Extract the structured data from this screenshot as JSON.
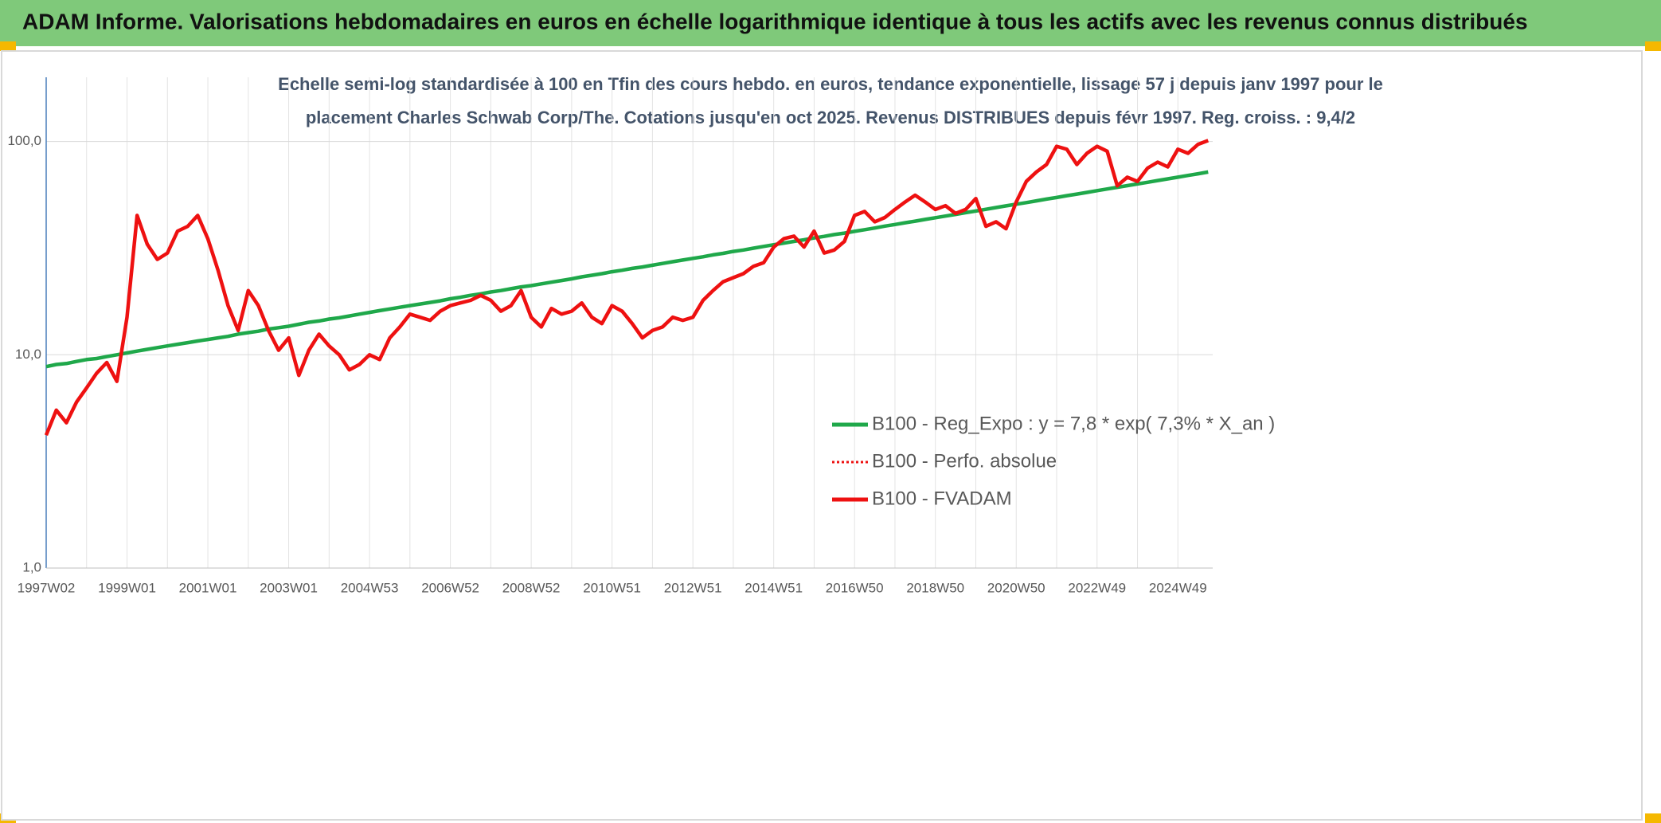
{
  "header": {
    "title": "ADAM Informe. Valorisations hebdomadaires en euros en échelle logarithmique identique à tous les actifs avec les revenus connus distribués"
  },
  "chart_data": {
    "type": "line",
    "subtitle": [
      "Echelle semi-log standardisée à 100 en Tfin des cours hebdo. en euros, tendance exponentielle, lissage 57 j depuis janv 1997 pour le",
      "placement Charles Schwab Corp/The. Cotations jusqu'en oct 2025. Revenus DISTRIBUES depuis févr 1997. Reg. croiss. : 9,4/2"
    ],
    "categories": [
      "1997W02",
      null,
      null,
      null,
      null,
      null,
      null,
      null,
      "1999W01",
      null,
      null,
      null,
      null,
      null,
      null,
      null,
      "2001W01",
      null,
      null,
      null,
      null,
      null,
      null,
      null,
      "2003W01",
      null,
      null,
      null,
      null,
      null,
      null,
      null,
      "2004W53",
      null,
      null,
      null,
      null,
      null,
      null,
      null,
      "2006W52",
      null,
      null,
      null,
      null,
      null,
      null,
      null,
      "2008W52",
      null,
      null,
      null,
      null,
      null,
      null,
      null,
      "2010W51",
      null,
      null,
      null,
      null,
      null,
      null,
      null,
      "2012W51",
      null,
      null,
      null,
      null,
      null,
      null,
      null,
      "2014W51",
      null,
      null,
      null,
      null,
      null,
      null,
      null,
      "2016W50",
      null,
      null,
      null,
      null,
      null,
      null,
      null,
      "2018W50",
      null,
      null,
      null,
      null,
      null,
      null,
      null,
      "2020W50",
      null,
      null,
      null,
      null,
      null,
      null,
      null,
      "2022W49",
      null,
      null,
      null,
      null,
      null,
      null,
      null,
      "2024W49",
      null,
      null,
      null
    ],
    "log_scale": true,
    "grid": true,
    "ylim": [
      1,
      200
    ],
    "yticks": [
      {
        "value": 1,
        "label": "1,0"
      },
      {
        "value": 10,
        "label": "10,0"
      },
      {
        "value": 100,
        "label": "100,0"
      }
    ],
    "series": [
      {
        "name": "B100 - Reg_Expo : y = 7,8 * exp( 7,3% *  X_an )",
        "color": "#1fa84a",
        "style": "solid",
        "values": [
          8.8,
          9.0,
          9.1,
          9.3,
          9.5,
          9.6,
          9.8,
          10.0,
          10.2,
          10.4,
          10.6,
          10.8,
          11.0,
          11.2,
          11.4,
          11.6,
          11.8,
          12.0,
          12.2,
          12.5,
          12.7,
          12.9,
          13.2,
          13.4,
          13.6,
          13.9,
          14.2,
          14.4,
          14.7,
          14.9,
          15.2,
          15.5,
          15.8,
          16.1,
          16.4,
          16.7,
          17.0,
          17.3,
          17.6,
          17.9,
          18.3,
          18.6,
          19.0,
          19.3,
          19.7,
          20.0,
          20.4,
          20.8,
          21.1,
          21.5,
          21.9,
          22.3,
          22.7,
          23.2,
          23.6,
          24.0,
          24.5,
          24.9,
          25.4,
          25.8,
          26.3,
          26.8,
          27.3,
          27.8,
          28.3,
          28.8,
          29.4,
          29.9,
          30.5,
          31.0,
          31.6,
          32.2,
          32.8,
          33.4,
          34.0,
          34.6,
          35.3,
          35.9,
          36.6,
          37.2,
          37.9,
          38.6,
          39.3,
          40.1,
          40.8,
          41.6,
          42.3,
          43.1,
          43.9,
          44.7,
          45.5,
          46.4,
          47.2,
          48.1,
          49.0,
          49.9,
          50.8,
          51.7,
          52.7,
          53.7,
          54.6,
          55.7,
          56.7,
          57.7,
          58.8,
          59.9,
          61.0,
          62.1,
          63.2,
          64.4,
          65.6,
          66.8,
          68.0,
          69.3,
          70.6,
          71.9
        ]
      },
      {
        "name": "B100 - Perfo. absolue",
        "color": "#ee1111",
        "style": "dotted",
        "values": [
          4.2,
          5.5,
          4.8,
          6.0,
          7.0,
          8.2,
          9.2,
          7.5,
          15,
          45,
          33,
          28,
          30,
          38,
          40,
          45,
          35,
          25,
          17,
          13,
          20,
          17,
          13,
          10.5,
          12,
          8,
          10.5,
          12.5,
          11,
          10,
          8.5,
          9,
          10,
          9.5,
          12,
          13.5,
          15.5,
          15,
          14.5,
          16,
          17,
          17.5,
          18,
          19,
          18,
          16,
          17,
          20,
          15,
          13.5,
          16.5,
          15.5,
          16,
          17.5,
          15,
          14,
          17,
          16,
          14,
          12,
          13,
          13.5,
          15,
          14.5,
          15,
          18,
          20,
          22,
          23,
          24,
          26,
          27,
          32,
          35,
          36,
          32,
          38,
          30,
          31,
          34,
          45,
          47,
          42,
          44,
          48,
          52,
          56,
          52,
          48,
          50,
          46,
          48,
          54,
          40,
          42,
          39,
          52,
          65,
          72,
          78,
          95,
          92,
          78,
          88,
          95,
          90,
          62,
          68,
          65,
          75,
          80,
          76,
          92,
          88,
          97,
          101
        ]
      },
      {
        "name": "B100 - FVADAM",
        "color": "#ee1111",
        "style": "solid",
        "values": [
          4.2,
          5.5,
          4.8,
          6.0,
          7.0,
          8.2,
          9.2,
          7.5,
          15,
          45,
          33,
          28,
          30,
          38,
          40,
          45,
          35,
          25,
          17,
          13,
          20,
          17,
          13,
          10.5,
          12,
          8,
          10.5,
          12.5,
          11,
          10,
          8.5,
          9,
          10,
          9.5,
          12,
          13.5,
          15.5,
          15,
          14.5,
          16,
          17,
          17.5,
          18,
          19,
          18,
          16,
          17,
          20,
          15,
          13.5,
          16.5,
          15.5,
          16,
          17.5,
          15,
          14,
          17,
          16,
          14,
          12,
          13,
          13.5,
          15,
          14.5,
          15,
          18,
          20,
          22,
          23,
          24,
          26,
          27,
          32,
          35,
          36,
          32,
          38,
          30,
          31,
          34,
          45,
          47,
          42,
          44,
          48,
          52,
          56,
          52,
          48,
          50,
          46,
          48,
          54,
          40,
          42,
          39,
          52,
          65,
          72,
          78,
          95,
          92,
          78,
          88,
          95,
          90,
          62,
          68,
          65,
          75,
          80,
          76,
          92,
          88,
          97,
          101
        ]
      }
    ]
  }
}
